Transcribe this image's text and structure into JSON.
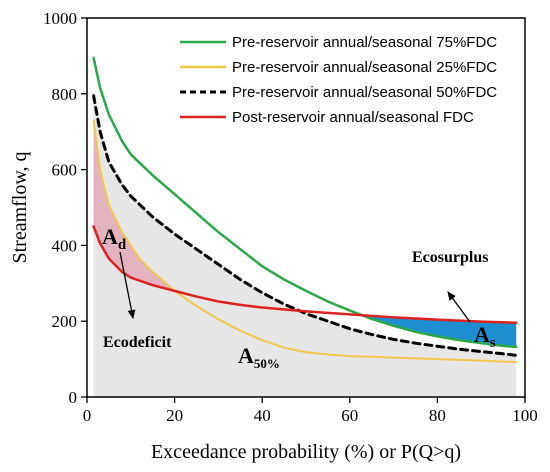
{
  "chart_data": {
    "type": "line",
    "xlabel": "Exceedance probability (%)  or  P(Q>q)",
    "ylabel": "Streamflow, q",
    "xlim": [
      0,
      100
    ],
    "ylim": [
      0,
      1000
    ],
    "xticks": [
      0,
      20,
      40,
      60,
      80,
      100
    ],
    "yticks": [
      0,
      200,
      400,
      600,
      800,
      1000
    ],
    "grid": false,
    "legend_position": "top-right",
    "series": [
      {
        "name": "Pre-reservoir annual/seasonal 75%FDC",
        "color": "#2ca84a",
        "style": "solid",
        "x": [
          1.5,
          3,
          5,
          8,
          10,
          15,
          20,
          25,
          30,
          35,
          40,
          45,
          50,
          55,
          60,
          65,
          70,
          75,
          80,
          85,
          90,
          95,
          98
        ],
        "y": [
          895,
          815,
          745,
          675,
          640,
          585,
          535,
          485,
          435,
          390,
          345,
          310,
          280,
          252,
          228,
          206,
          188,
          172,
          160,
          150,
          142,
          135,
          132
        ]
      },
      {
        "name": "Pre-reservoir annual/seasonal 25%FDC",
        "color": "#f0c84a",
        "style": "solid",
        "x": [
          1.5,
          3,
          5,
          8,
          10,
          12,
          15,
          20,
          25,
          30,
          35,
          40,
          45,
          50,
          55,
          60,
          70,
          80,
          90,
          98
        ],
        "y": [
          730,
          600,
          505,
          435,
          400,
          365,
          330,
          280,
          240,
          205,
          175,
          150,
          130,
          118,
          112,
          108,
          104,
          100,
          96,
          92
        ]
      },
      {
        "name": "Pre-reservoir annual/seasonal 50%FDC",
        "color": "#000000",
        "style": "dashed",
        "x": [
          1.5,
          3,
          5,
          8,
          10,
          15,
          20,
          25,
          30,
          35,
          40,
          45,
          50,
          55,
          60,
          65,
          70,
          75,
          80,
          85,
          90,
          95,
          98
        ],
        "y": [
          795,
          700,
          620,
          560,
          530,
          475,
          430,
          390,
          350,
          310,
          275,
          245,
          220,
          200,
          180,
          165,
          152,
          142,
          134,
          126,
          120,
          114,
          110
        ]
      },
      {
        "name": "Post-reservoir annual/seasonal FDC",
        "color": "#dd2222",
        "style": "solid",
        "x": [
          1.5,
          3,
          5,
          8,
          10,
          15,
          20,
          25,
          30,
          35,
          40,
          50,
          60,
          70,
          80,
          90,
          98
        ],
        "y": [
          450,
          405,
          365,
          330,
          315,
          295,
          280,
          265,
          252,
          243,
          236,
          226,
          218,
          210,
          204,
          199,
          196
        ]
      }
    ],
    "annotations": {
      "a_d_main": "A",
      "a_d_sub": "d",
      "a_s_main": "A",
      "a_s_sub": "s",
      "a_50_main": "A",
      "a_50_sub": "50%",
      "ecodeficit": "Ecodeficit",
      "ecosurplus": "Ecosurplus"
    },
    "shading": {
      "area_under_50_color": "#e6e6e6",
      "ecodeficit_color": "#e3b3c0",
      "ecosurplus_color": "#1d8fd0"
    }
  }
}
